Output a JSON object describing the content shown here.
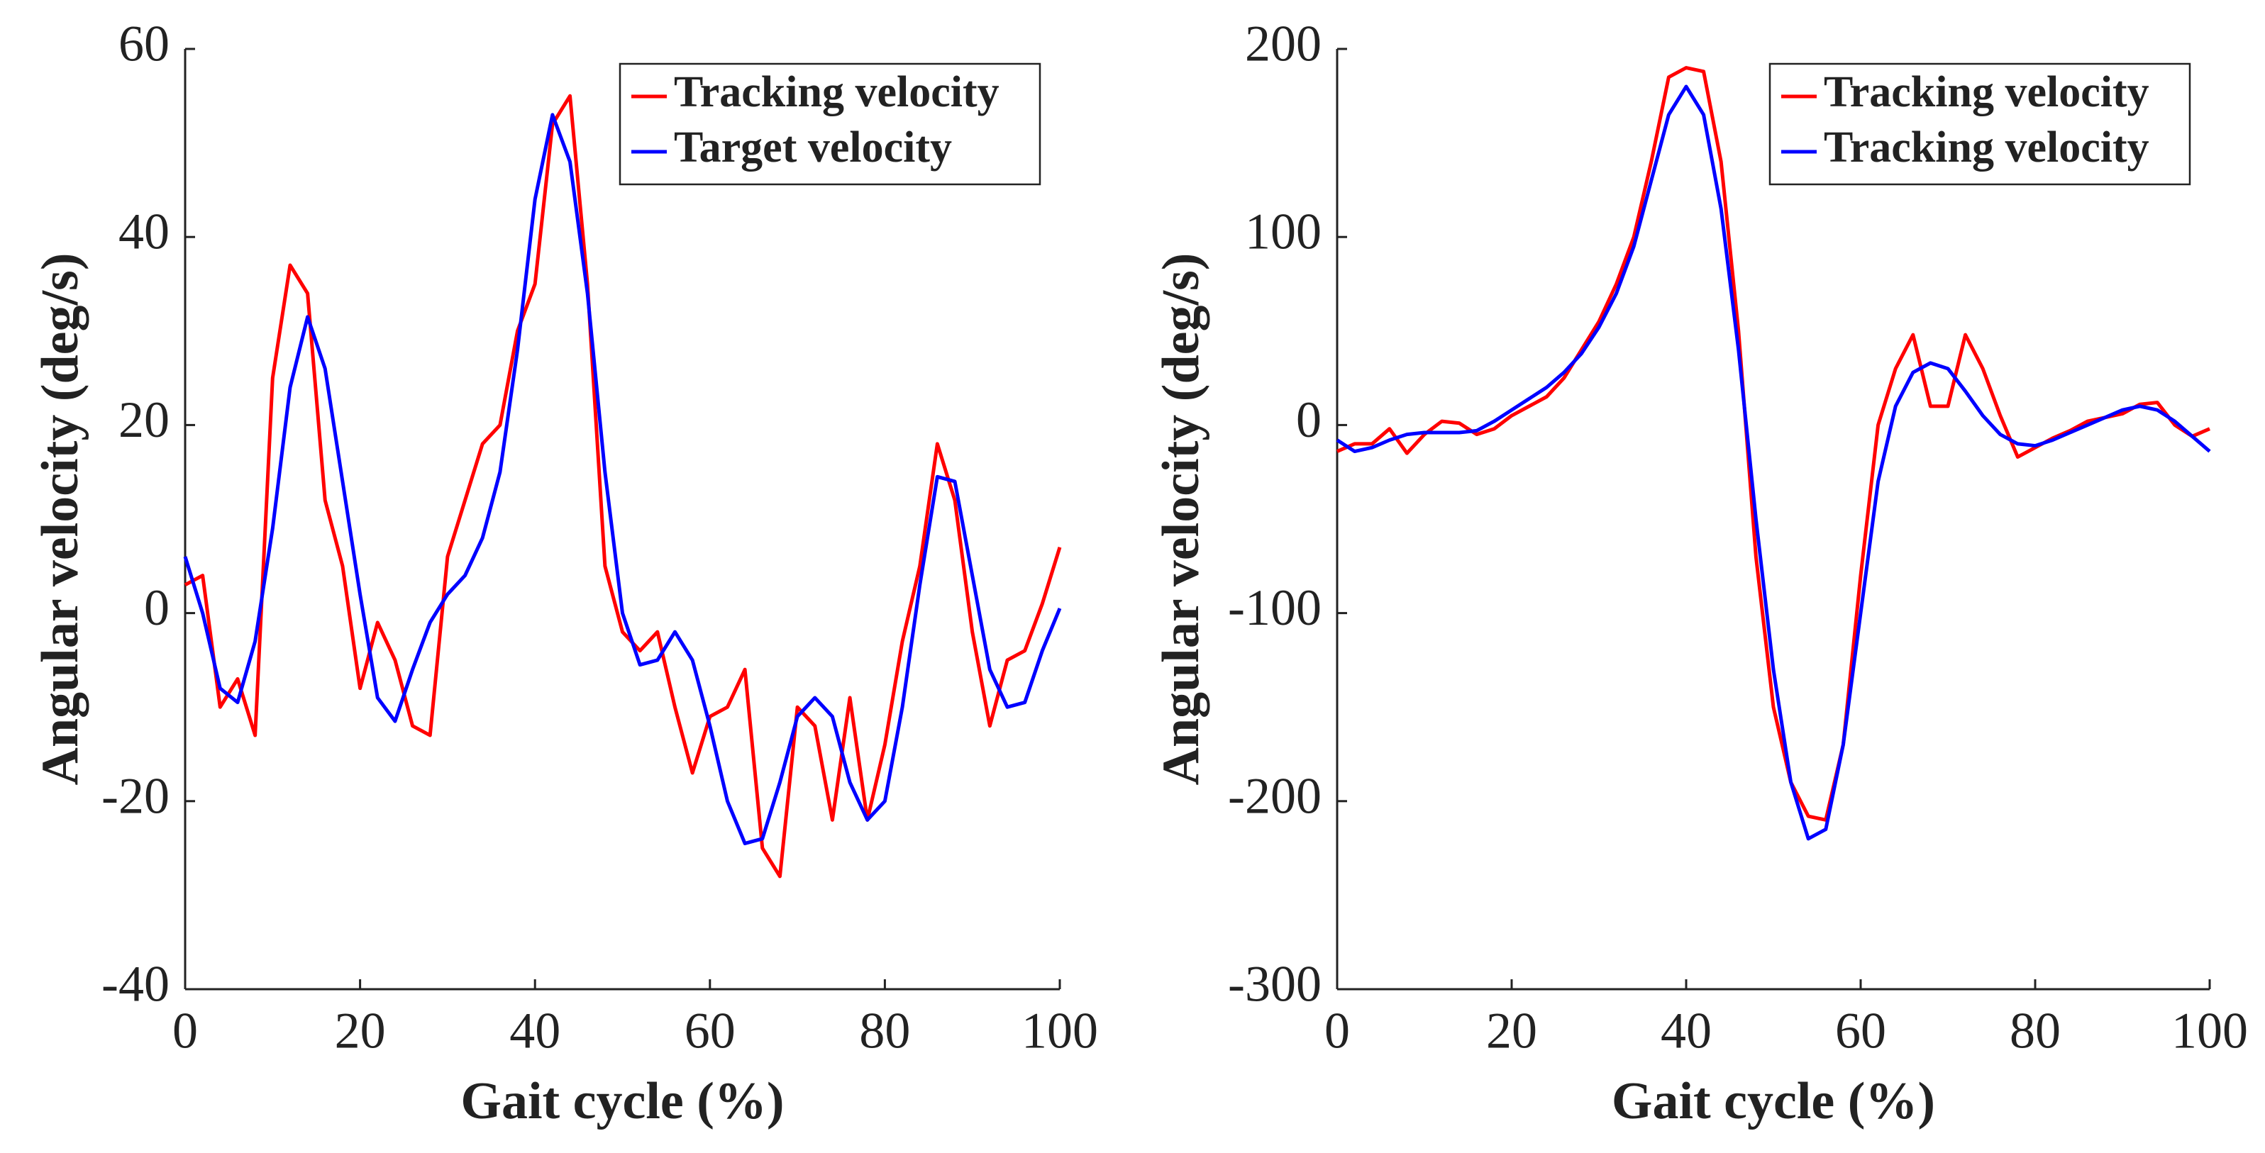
{
  "chart_data": [
    {
      "type": "line",
      "xlabel": "Gait cycle (%)",
      "ylabel": "Angular velocity (deg/s)",
      "x": [
        0,
        2,
        4,
        6,
        8,
        10,
        12,
        14,
        16,
        18,
        20,
        22,
        24,
        26,
        28,
        30,
        32,
        34,
        36,
        38,
        40,
        42,
        44,
        46,
        48,
        50,
        52,
        54,
        56,
        58,
        60,
        62,
        64,
        66,
        68,
        70,
        72,
        74,
        76,
        78,
        80,
        82,
        84,
        86,
        88,
        90,
        92,
        94,
        96,
        98,
        100
      ],
      "series": [
        {
          "name": "Tracking velocity",
          "color": "#ff0000",
          "values": [
            3,
            4,
            -10,
            -7,
            -13,
            25,
            37,
            34,
            12,
            5,
            -8,
            -1,
            -5,
            -12,
            -13,
            6,
            12,
            18,
            20,
            30,
            35,
            52,
            55,
            35,
            5,
            -2,
            -4,
            -2,
            -10,
            -17,
            -11,
            -10,
            -6,
            -25,
            -28,
            -10,
            -12,
            -22,
            -9,
            -22,
            -14,
            -3,
            5,
            18,
            12,
            -2,
            -12,
            -5,
            -4,
            1,
            7
          ]
        },
        {
          "name": "Target velocity",
          "color": "#0000ff",
          "values": [
            6,
            0,
            -8,
            -9.5,
            -3,
            9,
            24,
            31.5,
            26,
            14,
            2,
            -9,
            -11.5,
            -6,
            -1,
            2,
            4,
            8,
            15,
            28,
            44,
            53,
            48,
            34,
            15,
            0,
            -5.5,
            -5,
            -2,
            -5,
            -12,
            -20,
            -24.5,
            -24,
            -18,
            -11,
            -9,
            -11,
            -18,
            -22,
            -20,
            -10,
            3,
            14.5,
            14,
            4,
            -6,
            -10,
            -9.5,
            -4,
            0.5
          ]
        }
      ],
      "xlim": [
        0,
        100
      ],
      "ylim": [
        -40,
        60
      ],
      "xticks": [
        0,
        20,
        40,
        60,
        80,
        100
      ],
      "yticks": [
        -40,
        -20,
        0,
        20,
        40,
        60
      ],
      "legend": "upper right"
    },
    {
      "type": "line",
      "xlabel": "Gait cycle (%)",
      "ylabel": "Angular velocity (deg/s)",
      "x": [
        0,
        2,
        4,
        6,
        8,
        10,
        12,
        14,
        16,
        18,
        20,
        22,
        24,
        26,
        28,
        30,
        32,
        34,
        36,
        38,
        40,
        42,
        44,
        46,
        48,
        50,
        52,
        54,
        56,
        58,
        60,
        62,
        64,
        66,
        68,
        70,
        72,
        74,
        76,
        78,
        80,
        82,
        84,
        86,
        88,
        90,
        92,
        94,
        96,
        98,
        100
      ],
      "series": [
        {
          "name": "Tracking velocity",
          "color": "#ff0000",
          "values": [
            -14,
            -10,
            -10,
            -2,
            -15,
            -5,
            2,
            1,
            -5,
            -2,
            5,
            10,
            15,
            25,
            40,
            55,
            75,
            100,
            140,
            185,
            190,
            188,
            140,
            50,
            -70,
            -150,
            -190,
            -208,
            -210,
            -170,
            -80,
            0,
            30,
            48,
            10,
            10,
            48,
            30,
            5,
            -17,
            -12,
            -7,
            -3,
            2,
            4,
            6,
            11,
            12,
            0,
            -6,
            -2
          ]
        },
        {
          "name": "Tracking velocity",
          "color": "#0000ff",
          "values": [
            -8,
            -14,
            -12,
            -8,
            -5,
            -4,
            -4,
            -4,
            -3,
            2,
            8,
            14,
            20,
            28,
            38,
            52,
            70,
            95,
            130,
            165,
            180,
            165,
            115,
            40,
            -50,
            -130,
            -190,
            -220,
            -215,
            -170,
            -100,
            -30,
            10,
            28,
            33,
            30,
            18,
            5,
            -5,
            -10,
            -11,
            -8,
            -4,
            0,
            4,
            8,
            10,
            8,
            2,
            -6,
            -14
          ]
        }
      ],
      "xlim": [
        0,
        100
      ],
      "ylim": [
        -300,
        200
      ],
      "xticks": [
        0,
        20,
        40,
        60,
        80,
        100
      ],
      "yticks": [
        -300,
        -200,
        -100,
        0,
        100,
        200
      ],
      "legend": "upper right"
    }
  ]
}
